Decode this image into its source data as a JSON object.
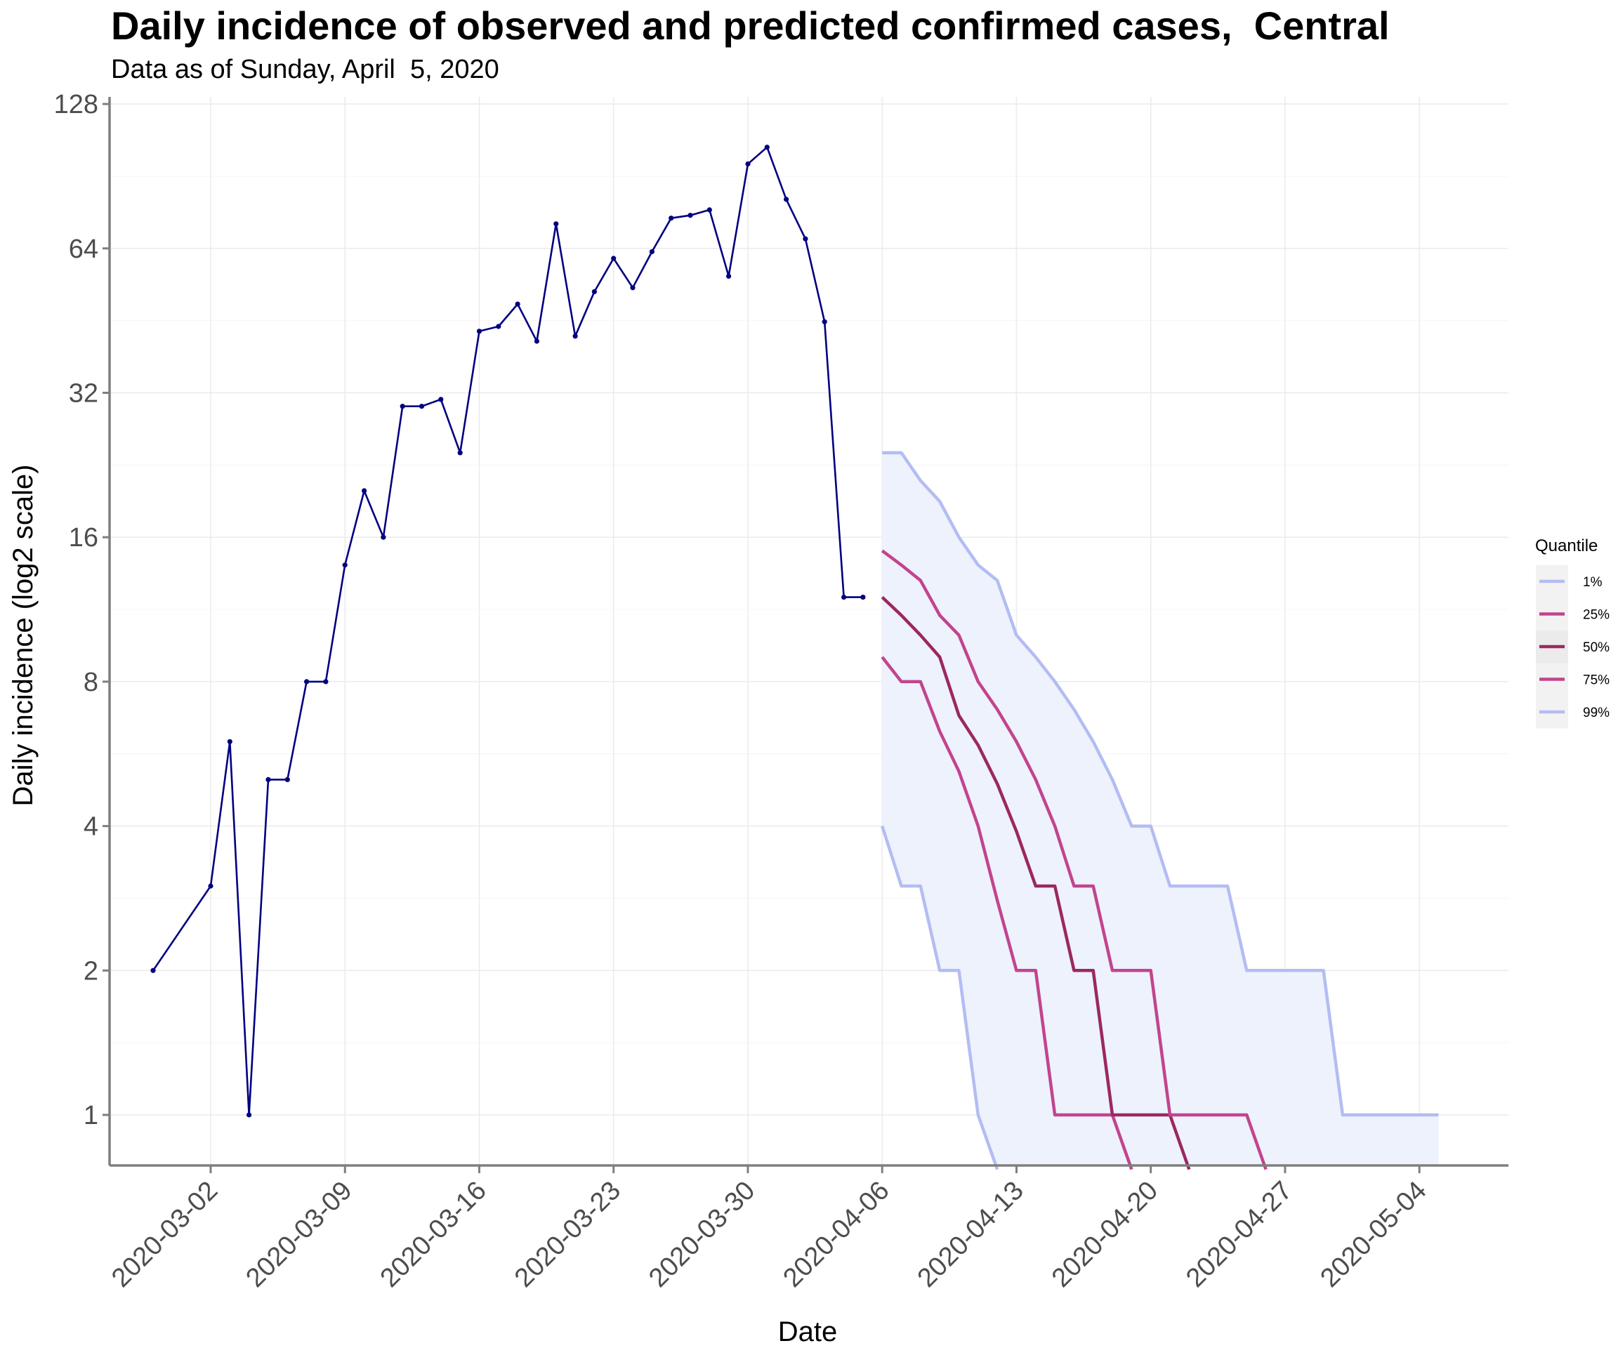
{
  "chart_data": {
    "type": "line",
    "title": "Daily incidence of observed and predicted confirmed cases,  Central",
    "subtitle": "Data as of Sunday, April  5, 2020",
    "xlabel": "Date",
    "ylabel": "Daily incidence (log2 scale)",
    "y_scale": "log2",
    "ylim": [
      0.77,
      130
    ],
    "xlim": [
      "2020-02-24",
      "2020-05-08"
    ],
    "grid": true,
    "legend_position": "right",
    "x_ticks": [
      "2020-03-02",
      "2020-03-09",
      "2020-03-16",
      "2020-03-23",
      "2020-03-30",
      "2020-04-06",
      "2020-04-13",
      "2020-04-20",
      "2020-04-27",
      "2020-05-04"
    ],
    "y_ticks": [
      1,
      2,
      4,
      8,
      16,
      32,
      64,
      128
    ],
    "legend": {
      "title": "Quantile",
      "entries": [
        {
          "label": "1%",
          "color": "#b3bdf2"
        },
        {
          "label": "25%",
          "color": "#c2448e"
        },
        {
          "label": "50%",
          "color": "#9b2860"
        },
        {
          "label": "75%",
          "color": "#c2448e"
        },
        {
          "label": "99%",
          "color": "#b3bdf2"
        }
      ]
    },
    "colors": {
      "observed": "#000080",
      "band_fill": "#eef2fd",
      "q01_q99": "#b3bdf2",
      "q25_q75": "#c2448e",
      "q50": "#9b2860",
      "grid": "#ebebeb",
      "axis": "#7f7f7f"
    },
    "observed": {
      "dates": [
        "2020-02-28",
        "2020-03-02",
        "2020-03-03",
        "2020-03-04",
        "2020-03-05",
        "2020-03-06",
        "2020-03-07",
        "2020-03-08",
        "2020-03-09",
        "2020-03-10",
        "2020-03-11",
        "2020-03-12",
        "2020-03-13",
        "2020-03-14",
        "2020-03-15",
        "2020-03-16",
        "2020-03-17",
        "2020-03-18",
        "2020-03-19",
        "2020-03-20",
        "2020-03-21",
        "2020-03-22",
        "2020-03-23",
        "2020-03-24",
        "2020-03-25",
        "2020-03-26",
        "2020-03-27",
        "2020-03-28",
        "2020-03-29",
        "2020-03-30",
        "2020-03-31",
        "2020-04-01",
        "2020-04-02",
        "2020-04-03",
        "2020-04-04",
        "2020-04-05"
      ],
      "values": [
        2,
        3,
        6,
        1,
        5,
        5,
        8,
        8,
        14,
        20,
        16,
        30,
        30,
        31,
        24,
        43,
        44,
        49,
        41,
        72,
        42,
        52,
        61,
        53,
        63,
        74,
        75,
        77,
        56,
        96,
        104,
        81,
        67,
        45,
        12,
        12
      ]
    },
    "series": [
      {
        "name": "1%",
        "dates": [
          "2020-04-06",
          "2020-04-07",
          "2020-04-08",
          "2020-04-09",
          "2020-04-10",
          "2020-04-11",
          "2020-04-12"
        ],
        "values": [
          4,
          3,
          3,
          2,
          2,
          1,
          0.77
        ]
      },
      {
        "name": "25%",
        "dates": [
          "2020-04-06",
          "2020-04-07",
          "2020-04-08",
          "2020-04-09",
          "2020-04-10",
          "2020-04-11",
          "2020-04-12",
          "2020-04-13",
          "2020-04-14",
          "2020-04-15",
          "2020-04-16",
          "2020-04-17",
          "2020-04-18",
          "2020-04-19"
        ],
        "values": [
          9,
          8,
          8,
          6.3,
          5.2,
          4,
          2.8,
          2,
          2,
          1,
          1,
          1,
          1,
          0.77
        ]
      },
      {
        "name": "50%",
        "dates": [
          "2020-04-06",
          "2020-04-07",
          "2020-04-08",
          "2020-04-09",
          "2020-04-10",
          "2020-04-11",
          "2020-04-12",
          "2020-04-13",
          "2020-04-14",
          "2020-04-15",
          "2020-04-16",
          "2020-04-17",
          "2020-04-18",
          "2020-04-19",
          "2020-04-20",
          "2020-04-21",
          "2020-04-22"
        ],
        "values": [
          12,
          11,
          10,
          9,
          6.8,
          5.9,
          4.9,
          3.9,
          3,
          3,
          2,
          2,
          1,
          1,
          1,
          1,
          0.77
        ]
      },
      {
        "name": "75%",
        "dates": [
          "2020-04-06",
          "2020-04-07",
          "2020-04-08",
          "2020-04-09",
          "2020-04-10",
          "2020-04-11",
          "2020-04-12",
          "2020-04-13",
          "2020-04-14",
          "2020-04-15",
          "2020-04-16",
          "2020-04-17",
          "2020-04-18",
          "2020-04-19",
          "2020-04-20",
          "2020-04-21",
          "2020-04-22",
          "2020-04-23",
          "2020-04-24",
          "2020-04-25",
          "2020-04-26"
        ],
        "values": [
          15,
          14,
          13,
          11,
          10,
          8,
          7,
          6,
          5,
          4,
          3,
          3,
          2,
          2,
          2,
          1,
          1,
          1,
          1,
          1,
          0.77
        ]
      },
      {
        "name": "99%",
        "dates": [
          "2020-04-06",
          "2020-04-07",
          "2020-04-08",
          "2020-04-09",
          "2020-04-10",
          "2020-04-11",
          "2020-04-12",
          "2020-04-13",
          "2020-04-14",
          "2020-04-15",
          "2020-04-16",
          "2020-04-17",
          "2020-04-18",
          "2020-04-19",
          "2020-04-20",
          "2020-04-21",
          "2020-04-22",
          "2020-04-23",
          "2020-04-24",
          "2020-04-25",
          "2020-04-26",
          "2020-04-27",
          "2020-04-28",
          "2020-04-29",
          "2020-04-30",
          "2020-05-01",
          "2020-05-02",
          "2020-05-03",
          "2020-05-04",
          "2020-05-05"
        ],
        "values": [
          24,
          24,
          21,
          19,
          16,
          14,
          13,
          10,
          9,
          8,
          7,
          6,
          5,
          4,
          4,
          3,
          3,
          3,
          3,
          2,
          2,
          2,
          2,
          2,
          1,
          1,
          1,
          1,
          1,
          1
        ]
      }
    ]
  }
}
